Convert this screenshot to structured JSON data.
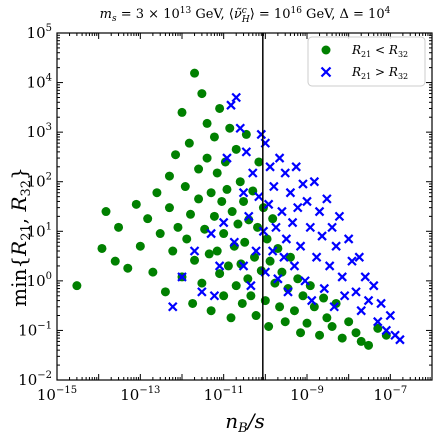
{
  "chart_data": {
    "type": "scatter",
    "title": "m_s = 3 × 10^13 GeV, ⟨ν̃ᶜ_H⟩ = 10^16 GeV, Δ = 10^4",
    "title_parts": {
      "lhs1": "m",
      "sub1": "s",
      "eq1": " = 3 × 10",
      "exp1": "13",
      "unit1": " GeV, ⟨",
      "nu": "ν̃",
      "sup_c": "c",
      "sub_h": "H",
      "eq2": "⟩ = 10",
      "exp2": "16",
      "unit2": " GeV, Δ = 10",
      "exp3": "4"
    },
    "xlabel": "n_B/s",
    "xlabel_parts": {
      "n": "n",
      "sub": "B",
      "rest": "/s"
    },
    "ylabel": "min{R_21, R_32}",
    "ylabel_parts": {
      "pre": "min{",
      "r1": "R",
      "s1": "21",
      "mid": ", ",
      "r2": "R",
      "s2": "32",
      "post": "}"
    },
    "x_scale": "log",
    "y_scale": "log",
    "xlim": [
      1e-15,
      1e-06
    ],
    "ylim": [
      0.01,
      100000
    ],
    "x_ticks": [
      {
        "value": 1e-15,
        "base": "10",
        "exp": "−15"
      },
      {
        "value": 1e-13,
        "base": "10",
        "exp": "−13"
      },
      {
        "value": 1e-11,
        "base": "10",
        "exp": "−11"
      },
      {
        "value": 1e-09,
        "base": "10",
        "exp": "−9"
      },
      {
        "value": 1e-07,
        "base": "10",
        "exp": "−7"
      }
    ],
    "y_ticks": [
      {
        "value": 0.01,
        "base": "10",
        "exp": "−2"
      },
      {
        "value": 0.1,
        "base": "10",
        "exp": "−1"
      },
      {
        "value": 1,
        "base": "10",
        "exp": "0"
      },
      {
        "value": 10,
        "base": "10",
        "exp": "1"
      },
      {
        "value": 100,
        "base": "10",
        "exp": "2"
      },
      {
        "value": 1000,
        "base": "10",
        "exp": "3"
      },
      {
        "value": 10000,
        "base": "10",
        "exp": "4"
      },
      {
        "value": 100000,
        "base": "10",
        "exp": "5"
      }
    ],
    "vertical_line_x": 8.7e-11,
    "grid": false,
    "legend_position": "top-right",
    "series": [
      {
        "name": "R_21 < R_32",
        "label_parts": {
          "r1": "R",
          "s1": "21",
          "op": " < ",
          "r2": "R",
          "s2": "32"
        },
        "marker": "circle",
        "color": "#008000",
        "points": [
          [
            3e-15,
            0.8
          ],
          [
            1.2e-14,
            4.5
          ],
          [
            1.5e-14,
            25
          ],
          [
            2.5e-14,
            2.5
          ],
          [
            3e-14,
            12
          ],
          [
            5e-14,
            1.8
          ],
          [
            8e-14,
            35
          ],
          [
            1e-13,
            5
          ],
          [
            1.5e-13,
            18
          ],
          [
            2e-13,
            1.5
          ],
          [
            2.5e-13,
            60
          ],
          [
            3e-13,
            9
          ],
          [
            4e-13,
            0.6
          ],
          [
            5e-13,
            30
          ],
          [
            5e-13,
            130
          ],
          [
            6e-13,
            4
          ],
          [
            7e-13,
            350
          ],
          [
            8e-13,
            12
          ],
          [
            1e-12,
            1.2
          ],
          [
            1e-12,
            2500
          ],
          [
            1.2e-12,
            80
          ],
          [
            1.3e-12,
            7
          ],
          [
            1.5e-12,
            600
          ],
          [
            1.6e-12,
            22
          ],
          [
            1.8e-12,
            0.35
          ],
          [
            2e-12,
            15500
          ],
          [
            2e-12,
            2.6
          ],
          [
            2.5e-12,
            180
          ],
          [
            2.5e-12,
            45
          ],
          [
            3e-12,
            6000
          ],
          [
            3e-12,
            0.9
          ],
          [
            3.5e-12,
            11
          ],
          [
            4e-12,
            1500
          ],
          [
            4e-12,
            300
          ],
          [
            4.5e-12,
            3.5
          ],
          [
            5e-12,
            60
          ],
          [
            5e-12,
            0.25
          ],
          [
            6e-12,
            800
          ],
          [
            6e-12,
            20
          ],
          [
            7e-12,
            4
          ],
          [
            7e-12,
            150
          ],
          [
            8e-12,
            1.4
          ],
          [
            8e-12,
            3000
          ],
          [
            9e-12,
            40
          ],
          [
            1e-11,
            0.5
          ],
          [
            1e-11,
            9
          ],
          [
            1.1e-11,
            250
          ],
          [
            1.2e-11,
            70
          ],
          [
            1.3e-11,
            2
          ],
          [
            1.4e-11,
            1200
          ],
          [
            1.5e-11,
            0.18
          ],
          [
            1.6e-11,
            25
          ],
          [
            1.8e-11,
            5
          ],
          [
            2e-11,
            450
          ],
          [
            2e-11,
            0.8
          ],
          [
            2.2e-11,
            14
          ],
          [
            2.5e-11,
            100
          ],
          [
            2.6e-11,
            2.2
          ],
          [
            2.8e-11,
            0.35
          ],
          [
            3e-11,
            40
          ],
          [
            3.2e-11,
            6
          ],
          [
            3.5e-11,
            900
          ],
          [
            3.8e-11,
            1.1
          ],
          [
            4e-11,
            17
          ],
          [
            4.5e-11,
            0.5
          ],
          [
            5e-11,
            65
          ],
          [
            5.5e-11,
            3
          ],
          [
            6e-11,
            0.2
          ],
          [
            6.5e-11,
            12
          ],
          [
            7e-11,
            250
          ],
          [
            8e-11,
            1.6
          ],
          [
            9e-11,
            30
          ],
          [
            1e-10,
            0.4
          ],
          [
            1.1e-10,
            7
          ],
          [
            1.2e-10,
            0.12
          ],
          [
            1.3e-10,
            2.5
          ],
          [
            1.5e-10,
            18
          ],
          [
            1.7e-10,
            0.9
          ],
          [
            2e-10,
            4.5
          ],
          [
            2.2e-10,
            0.3
          ],
          [
            2.5e-10,
            1.5
          ],
          [
            3e-10,
            0.15
          ],
          [
            3.5e-10,
            0.7
          ],
          [
            4e-10,
            3
          ],
          [
            5e-10,
            0.25
          ],
          [
            6e-10,
            1.1
          ],
          [
            7e-10,
            0.09
          ],
          [
            8e-10,
            0.5
          ],
          [
            1e-09,
            0.14
          ],
          [
            1.2e-09,
            0.8
          ],
          [
            1.5e-09,
            0.3
          ],
          [
            2e-09,
            0.08
          ],
          [
            2.5e-09,
            0.45
          ],
          [
            3e-09,
            0.18
          ],
          [
            4e-09,
            0.12
          ],
          [
            5e-09,
            0.35
          ],
          [
            7e-09,
            0.07
          ],
          [
            1e-08,
            0.15
          ],
          [
            1.5e-08,
            0.09
          ],
          [
            2e-08,
            0.06
          ],
          [
            3e-08,
            0.05
          ],
          [
            5e-08,
            0.11
          ],
          [
            8e-08,
            0.08
          ]
        ]
      },
      {
        "name": "R_21 > R_32",
        "label_parts": {
          "r1": "R",
          "s1": "21",
          "op": " > ",
          "r2": "R",
          "s2": "32"
        },
        "marker": "x",
        "color": "#0000ff",
        "points": [
          [
            6e-13,
            0.3
          ],
          [
            1e-12,
            1.2
          ],
          [
            2e-12,
            4
          ],
          [
            3e-12,
            0.6
          ],
          [
            5e-12,
            9
          ],
          [
            6e-12,
            0.5
          ],
          [
            8e-12,
            2
          ],
          [
            1e-11,
            15
          ],
          [
            1.2e-11,
            300
          ],
          [
            1.5e-11,
            3500
          ],
          [
            1.8e-11,
            6
          ],
          [
            2e-11,
            5000
          ],
          [
            2.5e-11,
            1200
          ],
          [
            3e-11,
            60
          ],
          [
            3e-11,
            2
          ],
          [
            3.5e-11,
            400
          ],
          [
            4e-11,
            20
          ],
          [
            4.5e-11,
            0.8
          ],
          [
            5e-11,
            150
          ],
          [
            6e-11,
            4
          ],
          [
            7e-11,
            50
          ],
          [
            8e-11,
            900
          ],
          [
            9e-11,
            10
          ],
          [
            1e-10,
            600
          ],
          [
            1e-10,
            1.5
          ],
          [
            1.2e-10,
            35
          ],
          [
            1.3e-10,
            200
          ],
          [
            1.5e-10,
            4
          ],
          [
            1.6e-10,
            80
          ],
          [
            1.8e-10,
            12
          ],
          [
            2e-10,
            1.1
          ],
          [
            2.2e-10,
            300
          ],
          [
            2.5e-10,
            25
          ],
          [
            2.8e-10,
            3
          ],
          [
            3e-10,
            150
          ],
          [
            3.2e-10,
            7
          ],
          [
            3.5e-10,
            0.6
          ],
          [
            4e-10,
            60
          ],
          [
            4.5e-10,
            15
          ],
          [
            5e-10,
            2
          ],
          [
            5.5e-10,
            200
          ],
          [
            6e-10,
            30
          ],
          [
            7e-10,
            5
          ],
          [
            8e-10,
            90
          ],
          [
            9e-10,
            1
          ],
          [
            1e-09,
            40
          ],
          [
            1.2e-09,
            12
          ],
          [
            1.3e-09,
            0.4
          ],
          [
            1.5e-09,
            100
          ],
          [
            1.7e-09,
            3
          ],
          [
            2e-09,
            25
          ],
          [
            2.3e-09,
            8
          ],
          [
            2.6e-09,
            0.7
          ],
          [
            3e-09,
            45
          ],
          [
            3.5e-09,
            2
          ],
          [
            4e-09,
            12
          ],
          [
            4.5e-09,
            0.3
          ],
          [
            5e-09,
            5
          ],
          [
            6e-09,
            20
          ],
          [
            7e-09,
            1.2
          ],
          [
            8e-09,
            0.5
          ],
          [
            1e-08,
            7
          ],
          [
            1.2e-08,
            2.5
          ],
          [
            1.5e-08,
            0.6
          ],
          [
            1.8e-08,
            3
          ],
          [
            2e-08,
            0.25
          ],
          [
            2.5e-08,
            1.2
          ],
          [
            3e-08,
            0.4
          ],
          [
            4e-08,
            0.8
          ],
          [
            5e-08,
            0.15
          ],
          [
            6e-08,
            0.35
          ],
          [
            8e-08,
            0.1
          ],
          [
            1e-07,
            0.2
          ],
          [
            1.3e-07,
            0.08
          ],
          [
            1.7e-07,
            0.065
          ]
        ]
      }
    ]
  }
}
